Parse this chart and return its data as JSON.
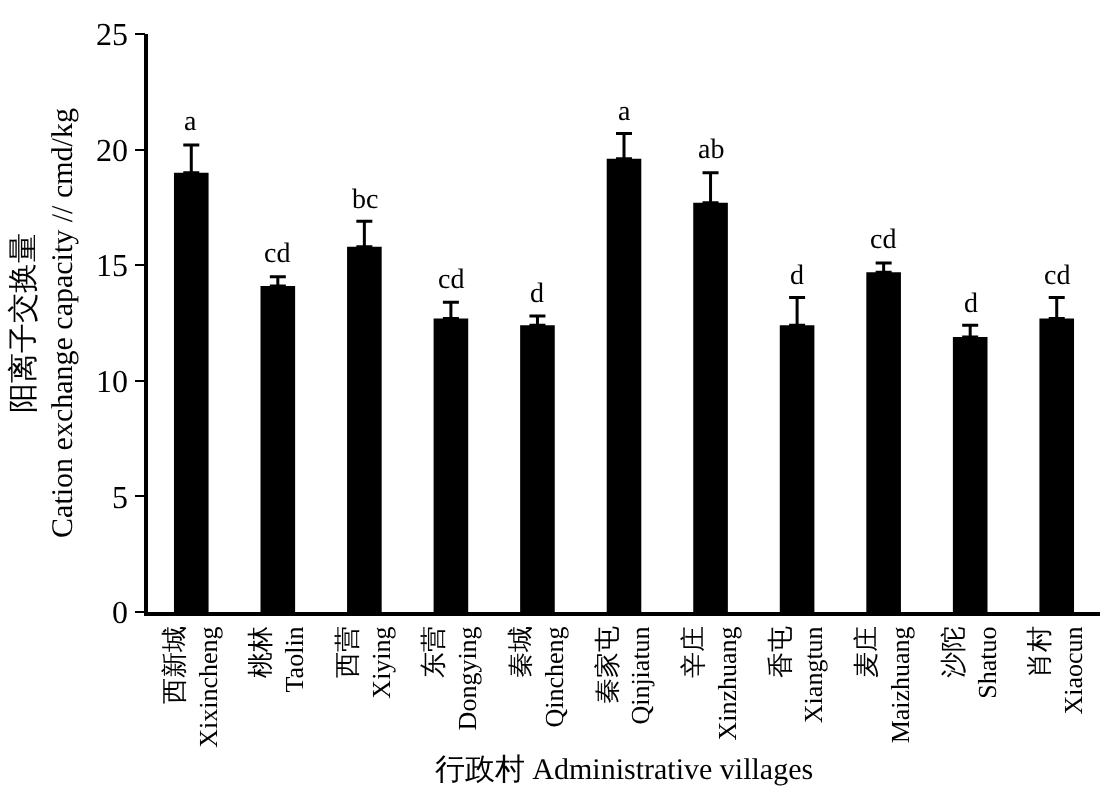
{
  "chart_data": {
    "type": "bar",
    "xlabel": "行政村 Administrative villages",
    "ylabel": "阳离子交换量\nCation exchange capacity // cmd/kg",
    "categories": [
      "西新城\nXixincheng",
      "桃林\nTaolin",
      "西营\nXiying",
      "东营\nDongying",
      "秦城\nQincheng",
      "秦家屯\nQinjiatun",
      "辛庄\nXinzhuang",
      "香屯\nXiangtun",
      "麦庄\nMaizhuang",
      "沙陀\nShatuo",
      "肖村\nXiaocun"
    ],
    "values": [
      19.0,
      14.1,
      15.8,
      12.7,
      12.4,
      19.6,
      17.7,
      12.4,
      14.7,
      11.9,
      12.7
    ],
    "errors": [
      [
        19.0,
        20.2
      ],
      [
        14.1,
        14.5
      ],
      [
        15.8,
        16.9
      ],
      [
        12.7,
        13.4
      ],
      [
        12.4,
        12.8
      ],
      [
        19.6,
        20.7
      ],
      [
        17.7,
        19.0
      ],
      [
        12.4,
        13.6
      ],
      [
        14.7,
        15.1
      ],
      [
        11.9,
        12.4
      ],
      [
        12.7,
        13.6
      ]
    ],
    "color": "#000000",
    "ylim": [
      0,
      25
    ],
    "yticks": [
      0,
      5,
      10,
      15,
      20,
      25
    ],
    "legend": false,
    "annotations": [
      {
        "text": "a",
        "x": "西新城\nXixincheng",
        "y": 20.2
      },
      {
        "text": "cd",
        "x": "桃林\nTaolin",
        "y": 14.5
      },
      {
        "text": "bc",
        "x": "西营\nXiying",
        "y": 16.9
      },
      {
        "text": "cd",
        "x": "东营\nDongying",
        "y": 13.4
      },
      {
        "text": "d",
        "x": "秦城\nQincheng",
        "y": 12.8
      },
      {
        "text": "a",
        "x": "秦家屯\nQinjiatun",
        "y": 20.7
      },
      {
        "text": "ab",
        "x": "辛庄\nXinzhuang",
        "y": 19.0
      },
      {
        "text": "d",
        "x": "香屯\nXiangtun",
        "y": 13.6
      },
      {
        "text": "cd",
        "x": "麦庄\nMaizhuang",
        "y": 15.1
      },
      {
        "text": "d",
        "x": "沙陀\nShatuo",
        "y": 12.4
      },
      {
        "text": "cd",
        "x": "肖村\nXiaocun",
        "y": 13.6
      }
    ]
  }
}
